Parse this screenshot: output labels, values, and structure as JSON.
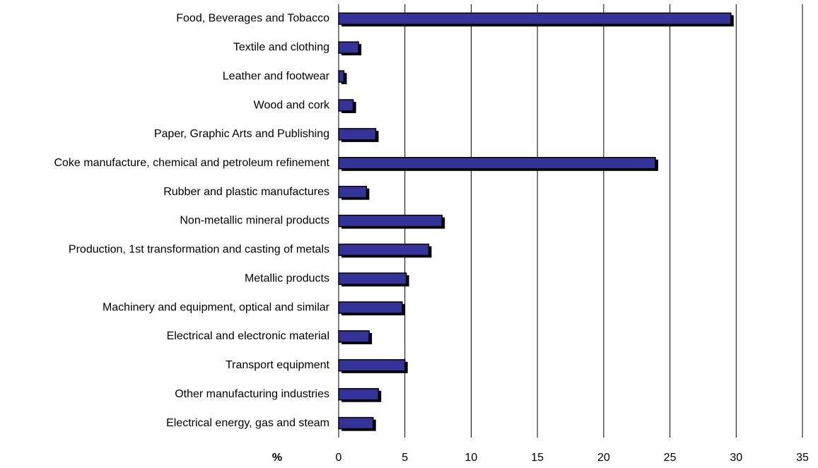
{
  "chart_data": {
    "type": "bar",
    "orientation": "horizontal",
    "x_label": "%",
    "categories": [
      "Food, Beverages and Tobacco",
      "Textile and clothing",
      "Leather and footwear",
      "Wood and cork",
      "Paper, Graphic Arts and Publishing",
      "Coke manufacture, chemical and petroleum refinement",
      "Rubber and plastic manufactures",
      "Non-metallic mineral products",
      "Production, 1st transformation and casting of metals",
      "Metallic products",
      "Machinery and equipment, optical and similar",
      "Electrical and electronic material",
      "Transport equipment",
      "Other manufacturing industries",
      "Electrical energy, gas and steam"
    ],
    "values": [
      29.6,
      1.5,
      0.4,
      1.1,
      2.8,
      23.9,
      2.1,
      7.8,
      6.8,
      5.1,
      4.8,
      2.3,
      5.0,
      3.0,
      2.6
    ],
    "color": "#333399",
    "xlim": [
      0,
      35
    ],
    "xticks": [
      0,
      5,
      10,
      15,
      20,
      25,
      30,
      35
    ],
    "grid": true
  }
}
